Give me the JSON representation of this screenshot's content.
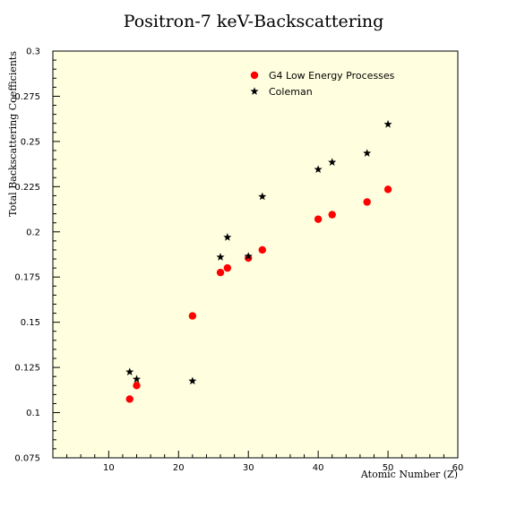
{
  "chart_data": {
    "type": "scatter",
    "title": "Positron-7 keV-Backscattering",
    "xlabel": "Atomic Number (Z)",
    "ylabel": "Total Backscattering Coefficients",
    "xlim": [
      2,
      60
    ],
    "ylim": [
      0.075,
      0.3
    ],
    "x_ticks": [
      10,
      20,
      30,
      40,
      50,
      60
    ],
    "x_tick_labels": [
      "10",
      "20",
      "30",
      "40",
      "50",
      "60"
    ],
    "y_ticks": [
      0.075,
      0.1,
      0.125,
      0.15,
      0.175,
      0.2,
      0.225,
      0.25,
      0.275,
      0.3
    ],
    "y_tick_labels": [
      "0.075",
      "0.1",
      "0.125",
      "0.15",
      "0.175",
      "0.2",
      "0.225",
      "0.25",
      "0.275",
      "0.3"
    ],
    "plot_background": "#ffffe0",
    "grid": false,
    "legend_position": "top-right",
    "series": [
      {
        "name": "G4 Low Energy Processes",
        "marker": "circle",
        "color": "#ff0000",
        "points": [
          {
            "x": 13,
            "y": 0.1075
          },
          {
            "x": 14,
            "y": 0.115
          },
          {
            "x": 22,
            "y": 0.1535
          },
          {
            "x": 26,
            "y": 0.1775
          },
          {
            "x": 27,
            "y": 0.18
          },
          {
            "x": 30,
            "y": 0.1855
          },
          {
            "x": 32,
            "y": 0.19
          },
          {
            "x": 40,
            "y": 0.207
          },
          {
            "x": 42,
            "y": 0.2095
          },
          {
            "x": 47,
            "y": 0.2165
          },
          {
            "x": 50,
            "y": 0.2235
          }
        ]
      },
      {
        "name": "Coleman",
        "marker": "star",
        "color": "#000000",
        "points": [
          {
            "x": 13,
            "y": 0.1225
          },
          {
            "x": 14,
            "y": 0.1185
          },
          {
            "x": 22,
            "y": 0.1175
          },
          {
            "x": 26,
            "y": 0.186
          },
          {
            "x": 27,
            "y": 0.197
          },
          {
            "x": 30,
            "y": 0.1865
          },
          {
            "x": 32,
            "y": 0.2195
          },
          {
            "x": 40,
            "y": 0.2345
          },
          {
            "x": 42,
            "y": 0.2385
          },
          {
            "x": 47,
            "y": 0.2435
          },
          {
            "x": 50,
            "y": 0.2595
          }
        ]
      }
    ]
  }
}
